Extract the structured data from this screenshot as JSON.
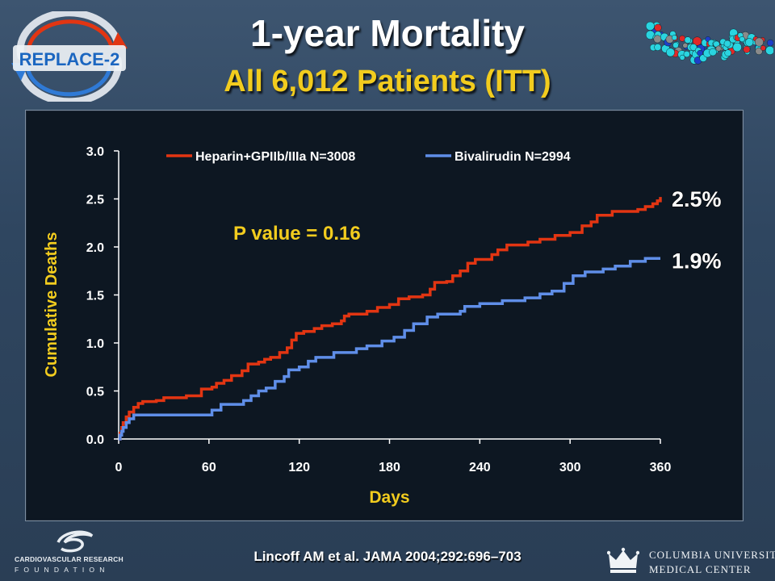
{
  "header": {
    "title": "1-year Mortality",
    "subtitle": "All 6,012 Patients (ITT)"
  },
  "logos": {
    "replace_text": "REPLACE-2",
    "crf_line1": "CARDIOVASCULAR RESEARCH",
    "crf_line2": "FOUNDATION",
    "cumc_line1": "COLUMBIA UNIVERSITY",
    "cumc_line2": "MEDICAL CENTER"
  },
  "citation": "Lincoff AM et al. JAMA 2004;292:696–703",
  "chart_data": {
    "type": "line",
    "xlabel": "Days",
    "ylabel": "Cumulative Deaths",
    "xlim": [
      0,
      360
    ],
    "ylim": [
      0,
      3.0
    ],
    "xticks": [
      "0",
      "60",
      "120",
      "180",
      "240",
      "300",
      "360"
    ],
    "yticks": [
      "0.0",
      "0.5",
      "1.0",
      "1.5",
      "2.0",
      "2.5",
      "3.0"
    ],
    "grid": false,
    "legend_position": "top",
    "annotation": "P value = 0.16",
    "series": [
      {
        "name": "Heparin+GPIIb/IIIa N=3008",
        "color": "#e23512",
        "end_label": "2.5%",
        "points": [
          [
            0,
            0
          ],
          [
            1,
            0.06
          ],
          [
            2,
            0.12
          ],
          [
            3,
            0.17
          ],
          [
            5,
            0.23
          ],
          [
            7,
            0.28
          ],
          [
            10,
            0.33
          ],
          [
            13,
            0.37
          ],
          [
            16,
            0.39
          ],
          [
            25,
            0.4
          ],
          [
            30,
            0.43
          ],
          [
            45,
            0.45
          ],
          [
            53,
            0.45
          ],
          [
            55,
            0.52
          ],
          [
            62,
            0.54
          ],
          [
            65,
            0.58
          ],
          [
            70,
            0.61
          ],
          [
            75,
            0.66
          ],
          [
            82,
            0.71
          ],
          [
            86,
            0.78
          ],
          [
            93,
            0.8
          ],
          [
            97,
            0.83
          ],
          [
            101,
            0.85
          ],
          [
            107,
            0.9
          ],
          [
            112,
            0.95
          ],
          [
            115,
            1.03
          ],
          [
            118,
            1.1
          ],
          [
            123,
            1.12
          ],
          [
            130,
            1.15
          ],
          [
            135,
            1.18
          ],
          [
            142,
            1.2
          ],
          [
            148,
            1.23
          ],
          [
            150,
            1.28
          ],
          [
            153,
            1.3
          ],
          [
            165,
            1.33
          ],
          [
            172,
            1.37
          ],
          [
            180,
            1.4
          ],
          [
            186,
            1.46
          ],
          [
            193,
            1.48
          ],
          [
            202,
            1.5
          ],
          [
            207,
            1.56
          ],
          [
            210,
            1.63
          ],
          [
            218,
            1.64
          ],
          [
            222,
            1.7
          ],
          [
            227,
            1.75
          ],
          [
            232,
            1.83
          ],
          [
            237,
            1.87
          ],
          [
            248,
            1.92
          ],
          [
            252,
            1.97
          ],
          [
            258,
            2.02
          ],
          [
            272,
            2.05
          ],
          [
            280,
            2.08
          ],
          [
            290,
            2.12
          ],
          [
            300,
            2.15
          ],
          [
            308,
            2.22
          ],
          [
            314,
            2.26
          ],
          [
            318,
            2.33
          ],
          [
            328,
            2.37
          ],
          [
            345,
            2.39
          ],
          [
            350,
            2.42
          ],
          [
            355,
            2.45
          ],
          [
            358,
            2.48
          ],
          [
            360,
            2.52
          ]
        ]
      },
      {
        "name": "Bivalirudin N=2994",
        "color": "#5f8ee8",
        "end_label": "1.9%",
        "points": [
          [
            0,
            0
          ],
          [
            1,
            0.04
          ],
          [
            2,
            0.08
          ],
          [
            3,
            0.12
          ],
          [
            5,
            0.17
          ],
          [
            7,
            0.21
          ],
          [
            10,
            0.25
          ],
          [
            57,
            0.25
          ],
          [
            62,
            0.3
          ],
          [
            68,
            0.36
          ],
          [
            83,
            0.4
          ],
          [
            88,
            0.45
          ],
          [
            93,
            0.5
          ],
          [
            98,
            0.53
          ],
          [
            104,
            0.6
          ],
          [
            110,
            0.65
          ],
          [
            113,
            0.72
          ],
          [
            120,
            0.75
          ],
          [
            126,
            0.81
          ],
          [
            131,
            0.85
          ],
          [
            143,
            0.9
          ],
          [
            158,
            0.94
          ],
          [
            165,
            0.97
          ],
          [
            175,
            1.02
          ],
          [
            183,
            1.06
          ],
          [
            190,
            1.13
          ],
          [
            196,
            1.2
          ],
          [
            205,
            1.27
          ],
          [
            212,
            1.3
          ],
          [
            227,
            1.33
          ],
          [
            230,
            1.38
          ],
          [
            240,
            1.41
          ],
          [
            255,
            1.44
          ],
          [
            270,
            1.47
          ],
          [
            280,
            1.51
          ],
          [
            288,
            1.54
          ],
          [
            296,
            1.62
          ],
          [
            302,
            1.7
          ],
          [
            310,
            1.74
          ],
          [
            322,
            1.77
          ],
          [
            330,
            1.8
          ],
          [
            340,
            1.85
          ],
          [
            350,
            1.88
          ],
          [
            360,
            1.88
          ]
        ]
      }
    ]
  }
}
